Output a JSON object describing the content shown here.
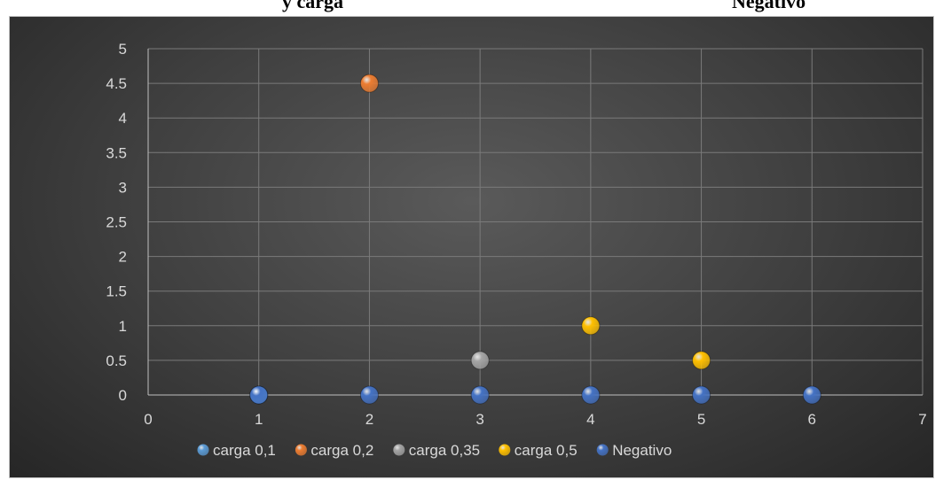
{
  "title_fragments": [
    "y carga",
    "Negativo"
  ],
  "chart_data": {
    "type": "scatter",
    "xlim": [
      0,
      7
    ],
    "ylim": [
      0,
      5
    ],
    "x_ticks": [
      0,
      1,
      2,
      3,
      4,
      5,
      6,
      7
    ],
    "y_ticks": [
      0,
      0.5,
      1,
      1.5,
      2,
      2.5,
      3,
      3.5,
      4,
      4.5,
      5
    ],
    "x_tick_labels": [
      "0",
      "1",
      "2",
      "3",
      "4",
      "5",
      "6",
      "7"
    ],
    "y_tick_labels": [
      "0",
      "0.5",
      "1",
      "1.5",
      "2",
      "2.5",
      "3",
      "3.5",
      "4",
      "4.5",
      "5"
    ],
    "grid": true,
    "legend_position": "bottom",
    "series": [
      {
        "name": "carga 0,1",
        "color": "#5b9bd5",
        "points": [
          [
            1,
            0
          ]
        ]
      },
      {
        "name": "carga 0,2",
        "color": "#ed7d31",
        "points": [
          [
            2,
            4.5
          ]
        ]
      },
      {
        "name": "carga 0,35",
        "color": "#a5a5a5",
        "points": [
          [
            3,
            0.5
          ]
        ]
      },
      {
        "name": "carga 0,5",
        "color": "#ffc000",
        "points": [
          [
            4,
            1
          ],
          [
            5,
            0.5
          ]
        ]
      },
      {
        "name": "Negativo",
        "color": "#4472c4",
        "points": [
          [
            1,
            0
          ],
          [
            2,
            0
          ],
          [
            3,
            0
          ],
          [
            4,
            0
          ],
          [
            5,
            0
          ],
          [
            6,
            0
          ]
        ]
      }
    ]
  }
}
